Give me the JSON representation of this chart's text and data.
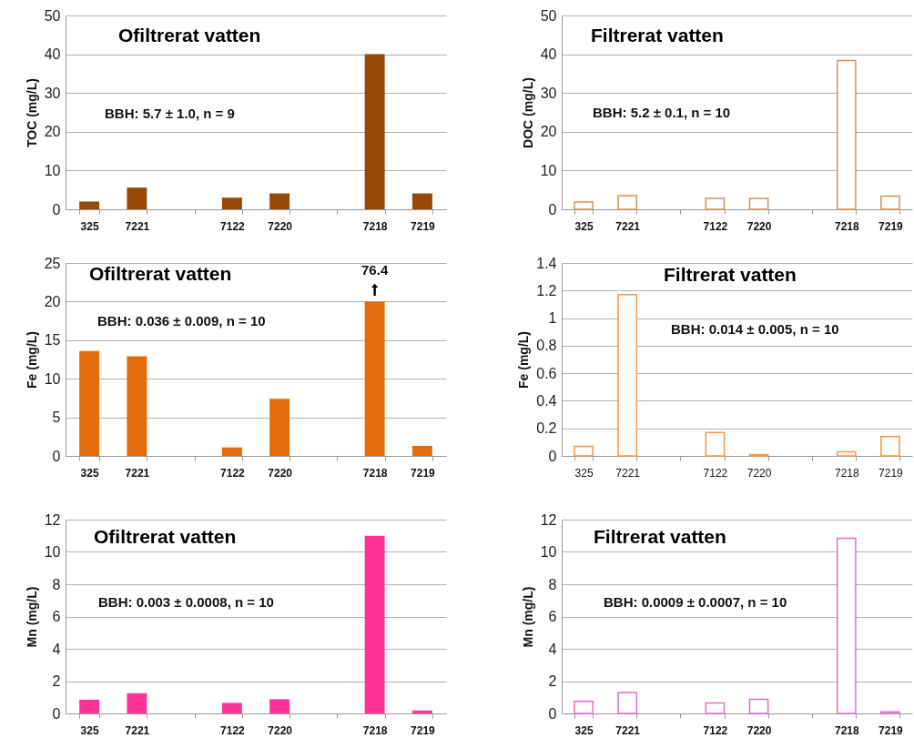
{
  "chart_data": [
    {
      "type": "bar",
      "title": "Ofiltrerat vatten",
      "ylabel": "TOC (mg/L)",
      "categories": [
        "325",
        "7221",
        null,
        "7122",
        "7220",
        null,
        "7218",
        "7219"
      ],
      "values": [
        2.0,
        5.6,
        null,
        3.0,
        4.1,
        null,
        40,
        4.1
      ],
      "color": "#974706",
      "ylim": [
        0,
        50
      ],
      "yticks": [
        0,
        10,
        20,
        30,
        40,
        50
      ],
      "grid": "y",
      "annotations": [
        "BBH: 5.7 ± 1.0, n = 9"
      ]
    },
    {
      "type": "bar",
      "title": "Filtrerat vatten",
      "ylabel": "DOC (mg/L)",
      "categories": [
        "325",
        "7221",
        null,
        "7122",
        "7220",
        null,
        "7218",
        "7219"
      ],
      "values": [
        1.9,
        3.5,
        null,
        2.8,
        2.8,
        null,
        38.4,
        3.4
      ],
      "color": "#d4925a",
      "ylim": [
        0,
        50
      ],
      "yticks": [
        0,
        10,
        20,
        30,
        40,
        50
      ],
      "grid": "y",
      "annotations": [
        "BBH: 5.2 ± 0.1, n = 10"
      ]
    },
    {
      "type": "bar",
      "title": "Ofiltrerat vatten",
      "ylabel": "Fe (mg/L)",
      "categories": [
        "325",
        "7221",
        null,
        "7122",
        "7220",
        null,
        "7218",
        "7219"
      ],
      "values": [
        13.6,
        12.9,
        null,
        1.1,
        7.4,
        null,
        20,
        1.3
      ],
      "color": "#e46c0a",
      "ylim": [
        0,
        25
      ],
      "yticks": [
        0,
        5,
        10,
        15,
        20,
        25
      ],
      "grid": "y",
      "annotations": [
        "BBH: 0.036 ± 0.009, n = 10",
        {
          "text": "76.4",
          "x": "7218",
          "y": 20
        }
      ]
    },
    {
      "type": "bar",
      "title": "Filtrerat vatten",
      "ylabel": "Fe (mg/L)",
      "categories": [
        "325",
        "7221",
        null,
        "7122",
        "7220",
        null,
        "7218",
        "7219"
      ],
      "values": [
        0.07,
        1.17,
        null,
        0.17,
        0.01,
        null,
        0.03,
        0.14
      ],
      "color": "#f79646",
      "ylim": [
        0,
        1.4
      ],
      "yticks": [
        0,
        0.2,
        0.4,
        0.6,
        0.8,
        1,
        1.2,
        1.4
      ],
      "grid": "y",
      "annotations": [
        "BBH: 0.014 ± 0.005, n = 10"
      ]
    },
    {
      "type": "bar",
      "title": "Ofiltrerat vatten",
      "ylabel": "Mn (mg/L)",
      "categories": [
        "325",
        "7221",
        null,
        "7122",
        "7220",
        null,
        "7218",
        "7219"
      ],
      "values": [
        0.85,
        1.25,
        null,
        0.65,
        0.88,
        null,
        11.0,
        0.18
      ],
      "color": "#ff3399",
      "ylim": [
        0,
        12
      ],
      "yticks": [
        0,
        2,
        4,
        6,
        8,
        10,
        12
      ],
      "grid": "y",
      "annotations": [
        "BBH: 0.003 ± 0.0008, n = 10"
      ]
    },
    {
      "type": "bar",
      "title": "Filtrerat vatten",
      "ylabel": "Mn (mg/L)",
      "categories": [
        "325",
        "7221",
        null,
        "7122",
        "7220",
        null,
        "7218",
        "7219"
      ],
      "values": [
        0.75,
        1.3,
        null,
        0.65,
        0.88,
        null,
        10.85,
        0.1
      ],
      "color": "#e070c8",
      "ylim": [
        0,
        12
      ],
      "yticks": [
        0,
        2,
        4,
        6,
        8,
        10,
        12
      ],
      "grid": "y",
      "annotations": [
        "BBH: 0.0009 ± 0.0007, n = 10"
      ]
    }
  ]
}
